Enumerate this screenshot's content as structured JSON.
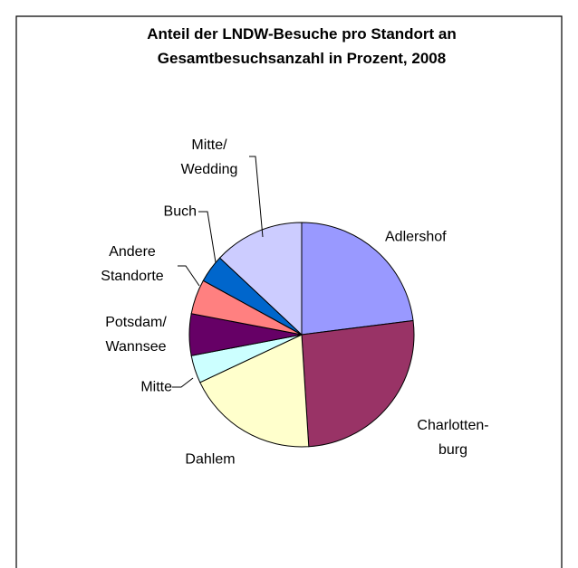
{
  "chart_data": {
    "type": "pie",
    "title": "Anteil der LNDW-Besuche pro Standort an\nGesamtbesuchsanzahl in Prozent, 2008",
    "categories": [
      "Adlershof",
      "Charlotten-\nburg",
      "Dahlem",
      "Mitte",
      "Potsdam/\nWannsee",
      "Andere\nStandorte",
      "Buch",
      "Mitte/\nWedding"
    ],
    "values": [
      23,
      26,
      19,
      4,
      6,
      5,
      4,
      13
    ],
    "colors": [
      "#9999ff",
      "#993366",
      "#ffffcc",
      "#ccffff",
      "#660066",
      "#ff8080",
      "#0066cc",
      "#ccccff"
    ]
  }
}
